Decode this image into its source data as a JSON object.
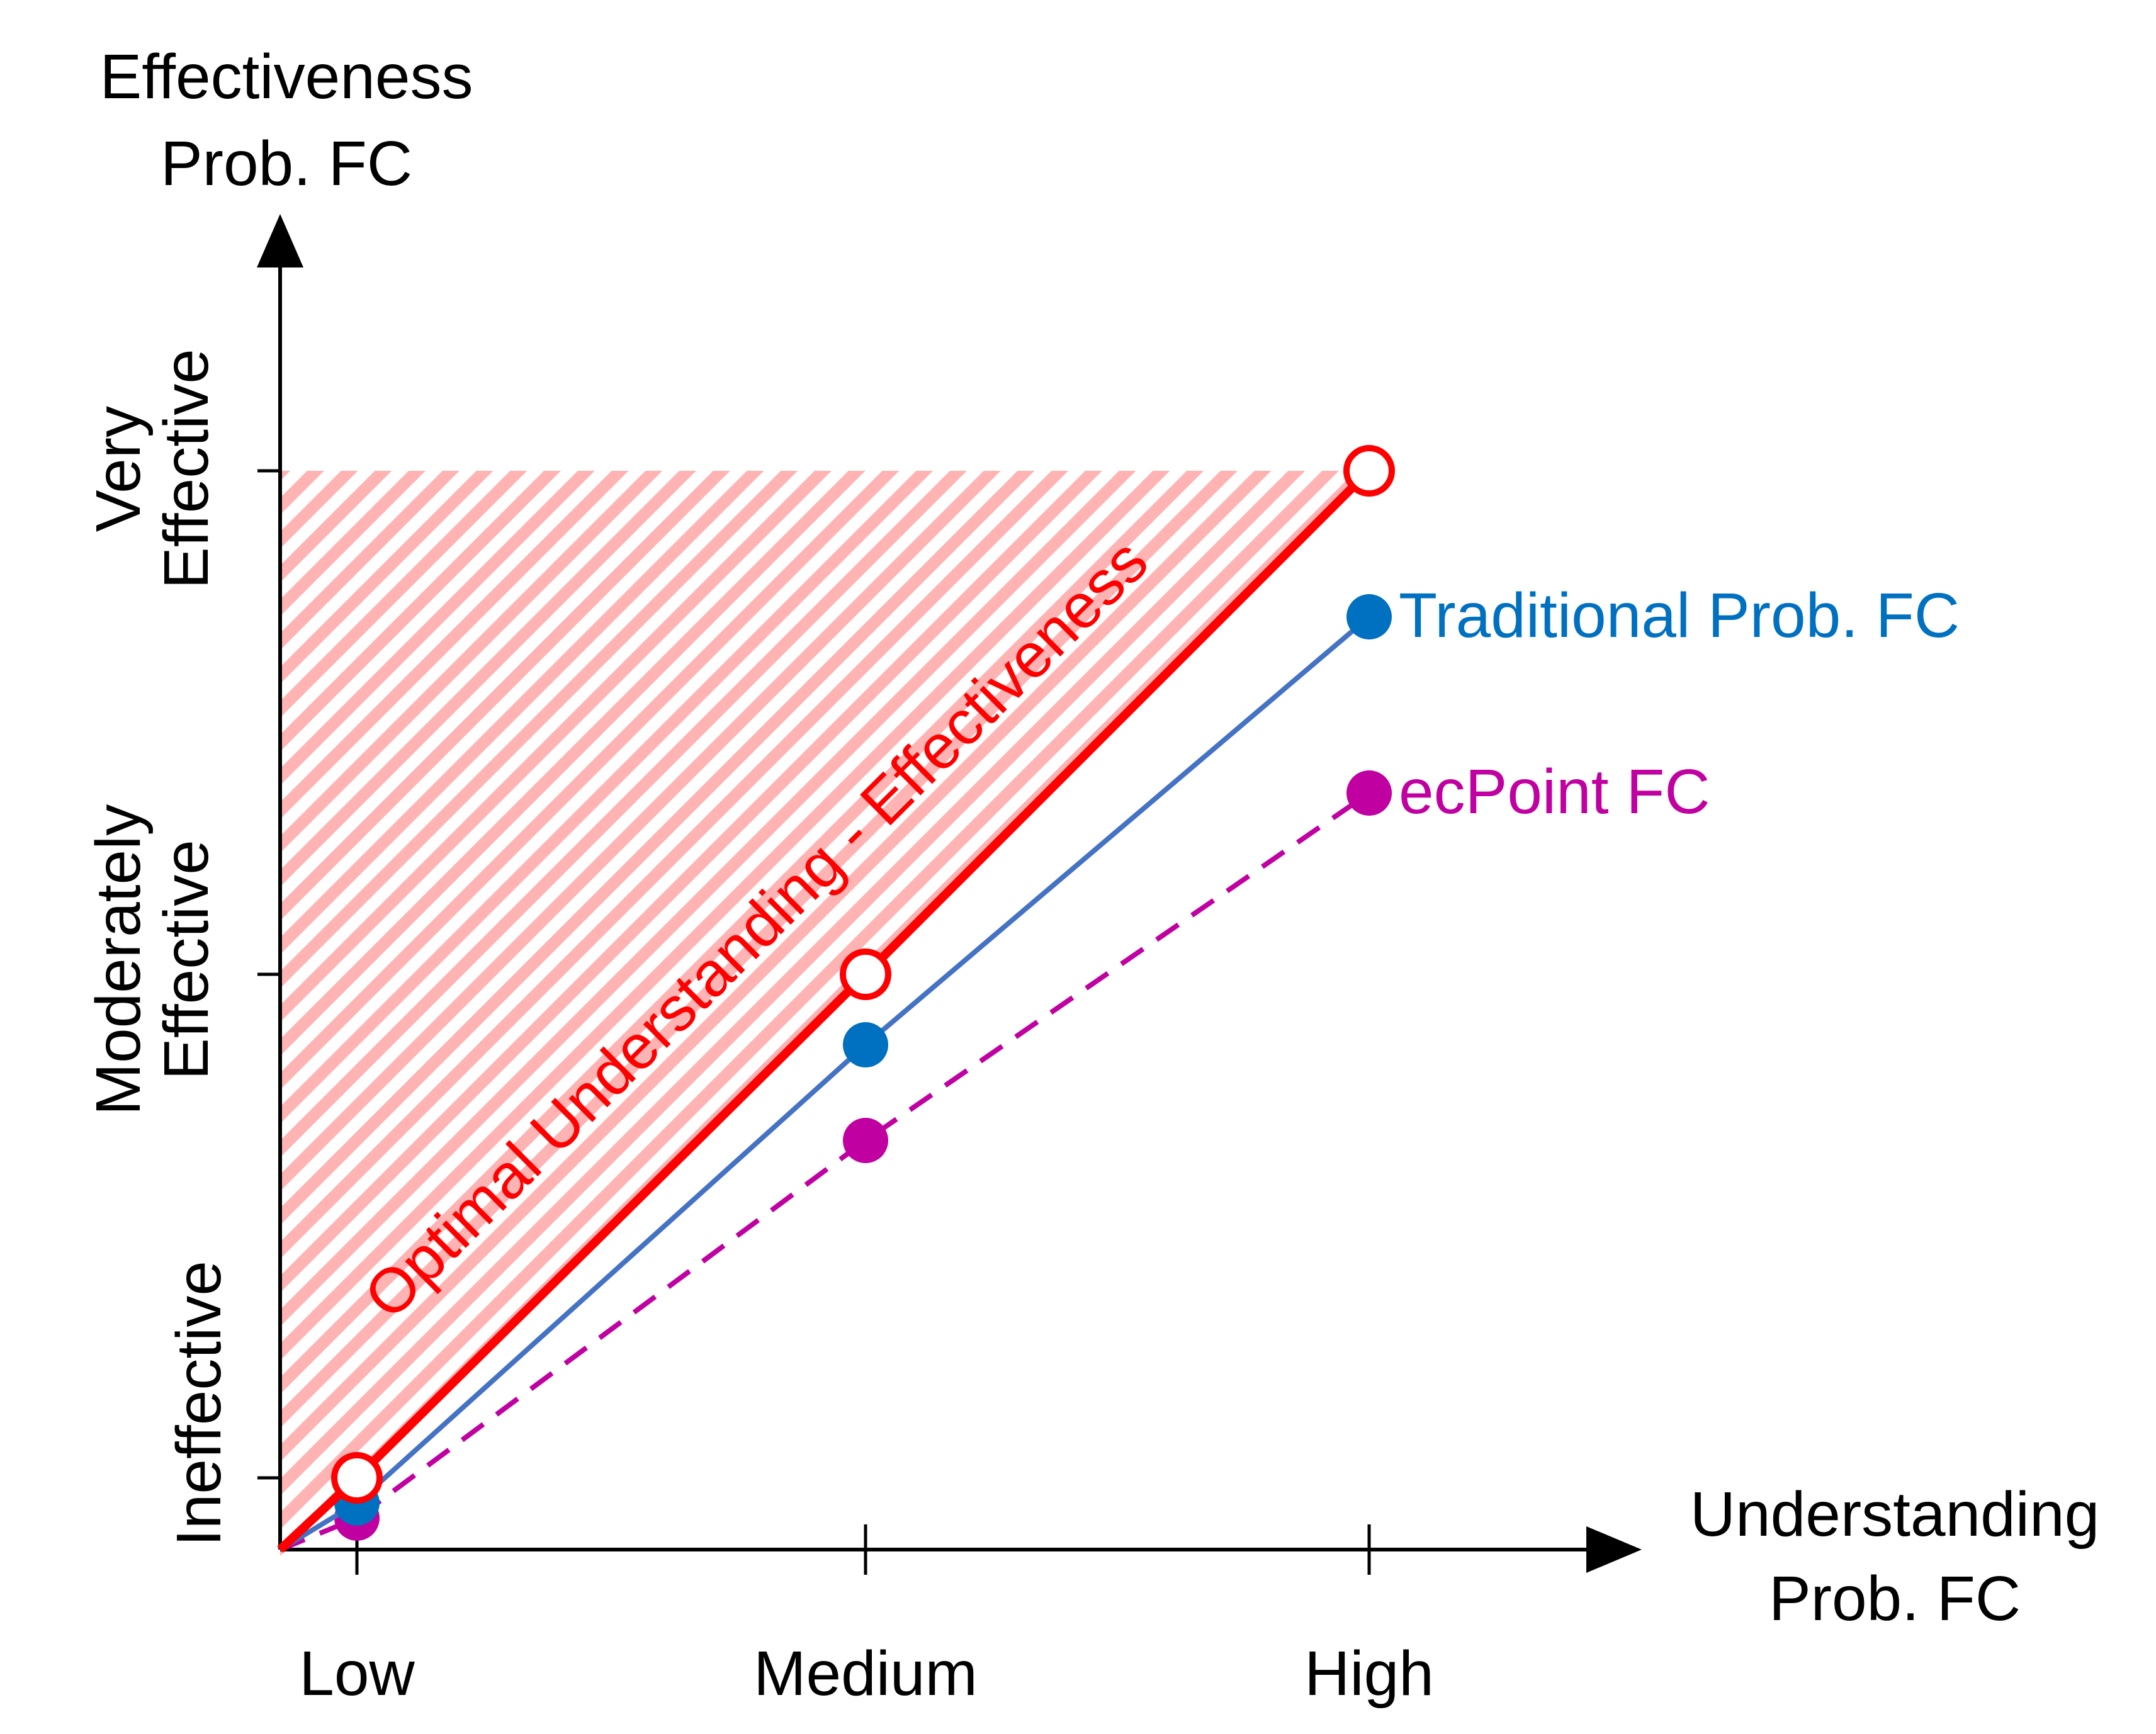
{
  "chart_data": {
    "type": "line",
    "xlabel": [
      "Understanding",
      "Prob. FC"
    ],
    "ylabel": [
      "Effectiveness",
      "Prob. FC"
    ],
    "categories": [
      "Low",
      "Medium",
      "High"
    ],
    "y_levels": [
      {
        "lines": [
          "Ineffective"
        ],
        "value": 0
      },
      {
        "lines": [
          "Moderately",
          "Effective"
        ],
        "value": 1
      },
      {
        "lines": [
          "Very",
          "Effective"
        ],
        "value": 2
      }
    ],
    "ylim": [
      -0.155,
      2.2
    ],
    "series": [
      {
        "name": "Optimal Understanding - Effectiveness",
        "x": [
          0,
          1,
          2
        ],
        "values": [
          0,
          1,
          2
        ],
        "color": "#ff0000",
        "style": "solid-thick",
        "marker": "open-circle",
        "label_placement": "along-line"
      },
      {
        "name": "Traditional Prob. FC",
        "x": [
          0,
          1,
          2
        ],
        "values": [
          -0.05,
          0.86,
          1.71
        ],
        "color": "#0070c0",
        "line_color": "#4472c4",
        "style": "solid",
        "marker": "filled-circle",
        "label_placement": "right-of-end"
      },
      {
        "name": "ecPoint FC",
        "x": [
          0,
          1,
          2
        ],
        "values": [
          -0.08,
          0.67,
          1.36
        ],
        "color": "#c000a0",
        "style": "dashed",
        "marker": "filled-circle",
        "label_placement": "right-of-end"
      }
    ],
    "shaded_region": "hatched pink triangle above the optimal line",
    "grid": false,
    "legend": "none"
  }
}
